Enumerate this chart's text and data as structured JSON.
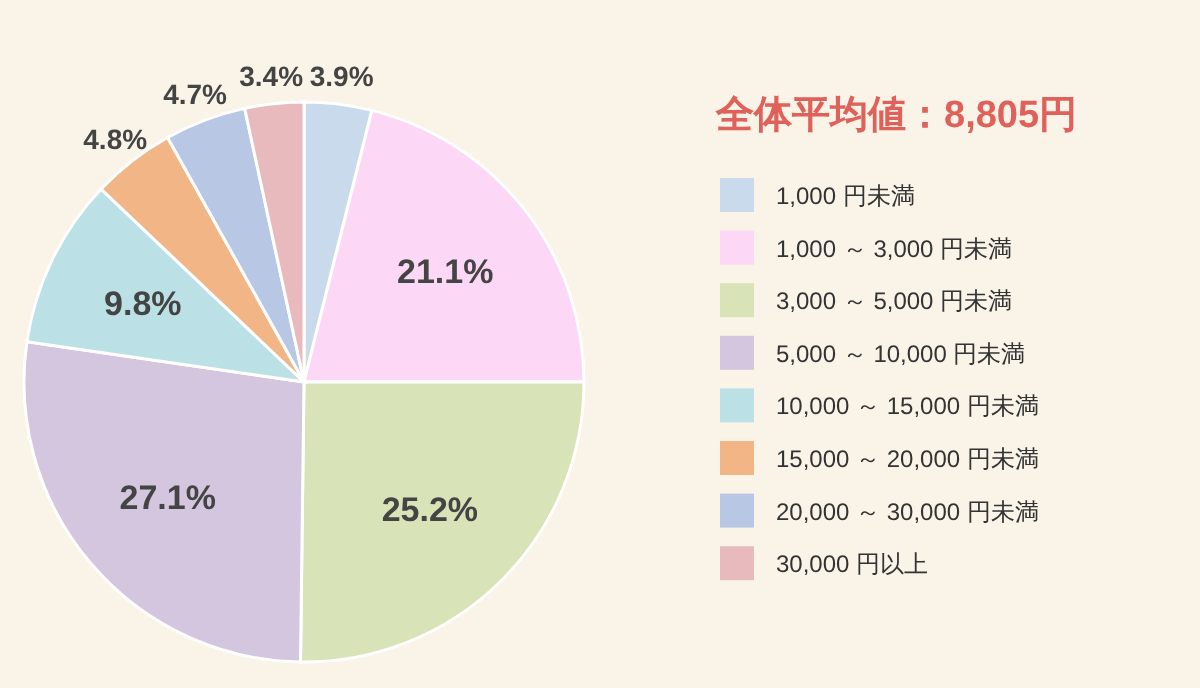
{
  "chart_data": {
    "type": "pie",
    "title": "全体平均値：8,805円",
    "categories": [
      "1,000 円未満",
      "1,000 ～ 3,000 円未満",
      "3,000 ～ 5,000 円未満",
      "5,000 ～ 10,000 円未満",
      "10,000 ～ 15,000 円未満",
      "15,000 ～ 20,000 円未満",
      "20,000 ～ 30,000 円未満",
      "30,000 円以上"
    ],
    "values": [
      3.9,
      21.1,
      25.2,
      27.1,
      9.8,
      4.8,
      4.7,
      3.4
    ],
    "colors": [
      "#c9daed",
      "#fcd7f6",
      "#d8e3b8",
      "#d4c6de",
      "#bbe1e7",
      "#f1b586",
      "#b8c7e3",
      "#e9babd"
    ],
    "value_labels": [
      "3.9%",
      "21.1%",
      "25.2%",
      "27.1%",
      "9.8%",
      "4.8%",
      "4.7%",
      "3.4%"
    ],
    "legend": "right"
  }
}
